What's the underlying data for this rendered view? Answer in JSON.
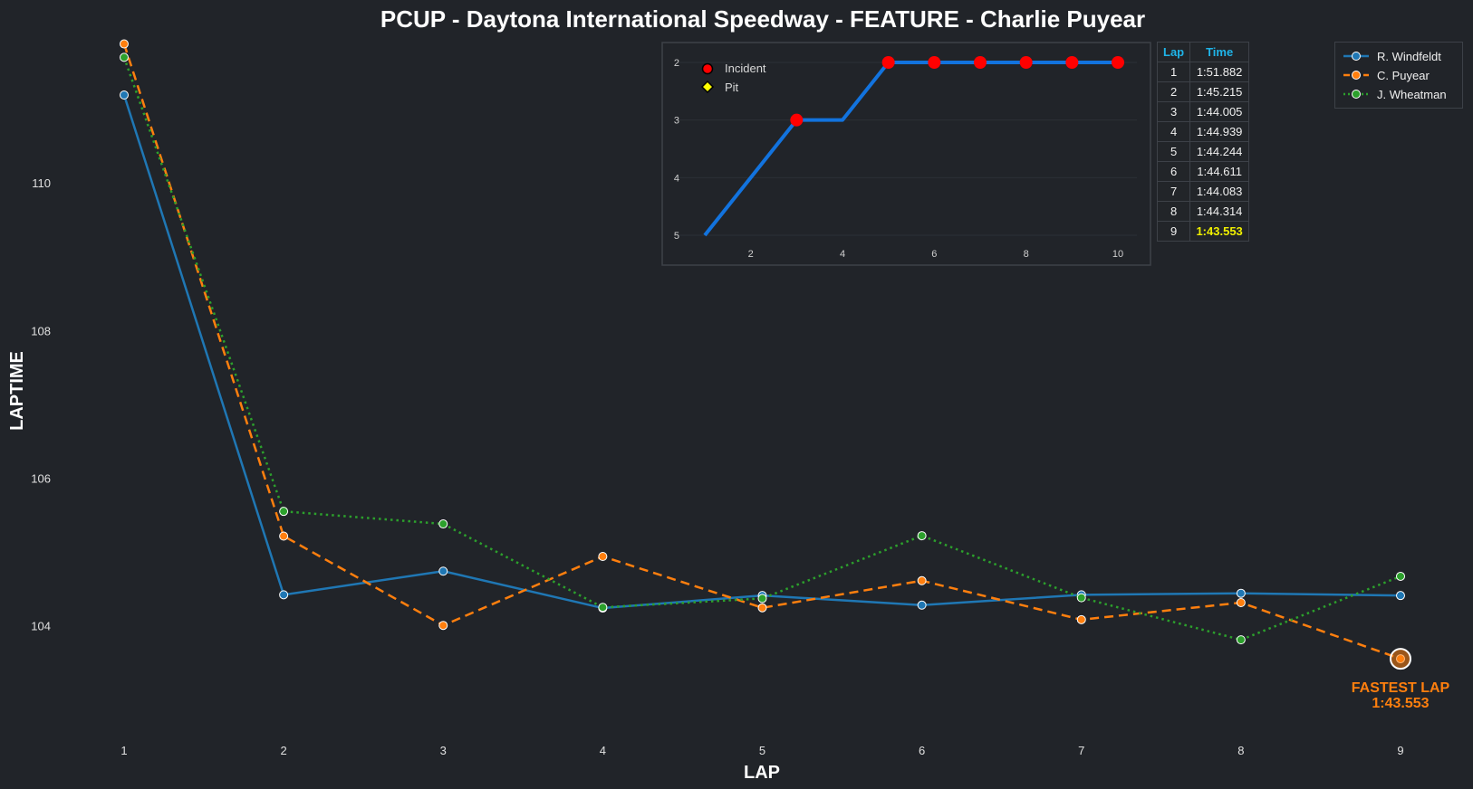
{
  "chart_data": [
    {
      "type": "line",
      "title": "PCUP - Daytona International Speedway - FEATURE - Charlie Puyear",
      "xlabel": "LAP",
      "ylabel": "LAPTIME",
      "x": [
        1,
        2,
        3,
        4,
        5,
        6,
        7,
        8,
        9
      ],
      "xticks": [
        "1",
        "2",
        "3",
        "4",
        "5",
        "6",
        "7",
        "8",
        "9"
      ],
      "yticks": [
        104,
        106,
        108,
        110
      ],
      "ylim": [
        102.5,
        111.95
      ],
      "grid": false,
      "legend_position": "top-right",
      "series": [
        {
          "name": "R. Windfeldt",
          "color": "#1f77b4",
          "style": "solid",
          "values": [
            111.19,
            104.42,
            104.74,
            104.24,
            104.41,
            104.28,
            104.42,
            104.44,
            104.41
          ]
        },
        {
          "name": "C. Puyear",
          "color": "#ff7f0e",
          "style": "dashed",
          "values": [
            111.882,
            105.215,
            104.005,
            104.939,
            104.244,
            104.611,
            104.083,
            104.314,
            103.553
          ]
        },
        {
          "name": "J. Wheatman",
          "color": "#2ca02c",
          "style": "dotted",
          "values": [
            111.7,
            105.55,
            105.38,
            104.25,
            104.37,
            105.22,
            104.38,
            103.81,
            104.67
          ]
        }
      ],
      "annotation": {
        "text_line1": "FASTEST LAP",
        "text_line2": "1:43.553",
        "x": 9,
        "y": 103.553,
        "color": "#ff7f0e"
      }
    },
    {
      "type": "line",
      "title": "",
      "x": [
        1,
        2,
        3,
        4,
        5,
        6,
        7,
        8,
        9,
        10
      ],
      "values": [
        5,
        4,
        3,
        3,
        2,
        2,
        2,
        2,
        2,
        2
      ],
      "xticks": [
        2,
        4,
        6,
        8,
        10
      ],
      "yticks": [
        2,
        3,
        4,
        5
      ],
      "xlim": [
        0.85,
        10.4
      ],
      "ylim_inverted": [
        2,
        5
      ],
      "line_color": "#1273de",
      "incident_laps": [
        3,
        5,
        6,
        7,
        8,
        9,
        10
      ],
      "pit_laps": [],
      "legend": [
        {
          "label": "Incident",
          "color": "#ff0000",
          "marker": "circle"
        },
        {
          "label": "Pit",
          "color": "#ffff00",
          "marker": "diamond"
        }
      ]
    }
  ],
  "lap_table": {
    "headers": [
      "Lap",
      "Time"
    ],
    "rows": [
      {
        "lap": "1",
        "time": "1:51.882"
      },
      {
        "lap": "2",
        "time": "1:45.215"
      },
      {
        "lap": "3",
        "time": "1:44.005"
      },
      {
        "lap": "4",
        "time": "1:44.939"
      },
      {
        "lap": "5",
        "time": "1:44.244"
      },
      {
        "lap": "6",
        "time": "1:44.611"
      },
      {
        "lap": "7",
        "time": "1:44.083"
      },
      {
        "lap": "8",
        "time": "1:44.314"
      },
      {
        "lap": "9",
        "time": "1:43.553"
      }
    ],
    "fastest_index": 8,
    "header_color": "#1fb4e8",
    "fastest_color": "#f0f000"
  }
}
